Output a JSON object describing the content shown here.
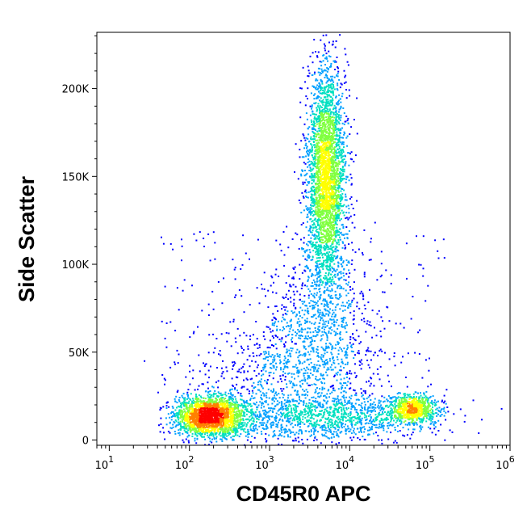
{
  "chart_data": {
    "type": "scatter",
    "style": "density-colored flow cytometry dot plot",
    "xlabel": "CD45R0 APC",
    "ylabel": "Side Scatter",
    "x_scale": "log",
    "y_scale": "linear",
    "xlim": [
      7,
      1000000
    ],
    "ylim": [
      -3000,
      232000
    ],
    "x_ticks": [
      {
        "value": 10,
        "base": "10",
        "exp": "1"
      },
      {
        "value": 100,
        "base": "10",
        "exp": "2"
      },
      {
        "value": 1000,
        "base": "10",
        "exp": "3"
      },
      {
        "value": 10000,
        "base": "10",
        "exp": "4"
      },
      {
        "value": 100000,
        "base": "10",
        "exp": "5"
      },
      {
        "value": 1000000,
        "base": "10",
        "exp": "6"
      }
    ],
    "y_ticks": [
      {
        "value": 0,
        "label": "0"
      },
      {
        "value": 50000,
        "label": "50K"
      },
      {
        "value": 100000,
        "label": "100K"
      },
      {
        "value": 150000,
        "label": "150K"
      },
      {
        "value": 200000,
        "label": "200K"
      }
    ],
    "density_colors": [
      "#0000ff",
      "#00a0ff",
      "#00e0c0",
      "#80ff40",
      "#ffff00",
      "#ff8000",
      "#ff0000"
    ],
    "populations": [
      {
        "x_center": 5000,
        "y_center": 150000,
        "x_spread_decades": 0.12,
        "y_spread": 32000,
        "count": 3200
      },
      {
        "x_center": 180,
        "y_center": 14000,
        "x_spread_decades": 0.22,
        "y_spread": 5500,
        "count": 2200
      },
      {
        "x_center": 60000,
        "y_center": 18000,
        "x_spread_decades": 0.15,
        "y_spread": 4000,
        "count": 700
      },
      {
        "x_center": 5000,
        "y_center": 14000,
        "x_spread_decades": 0.7,
        "y_spread": 6000,
        "count": 1200
      },
      {
        "x_center": 4000,
        "y_center": 60000,
        "x_spread_decades": 0.35,
        "y_spread": 25000,
        "count": 900
      },
      {
        "x_center": 1000,
        "y_center": 35000,
        "x_spread_decades": 0.55,
        "y_spread": 16000,
        "count": 500
      }
    ]
  }
}
